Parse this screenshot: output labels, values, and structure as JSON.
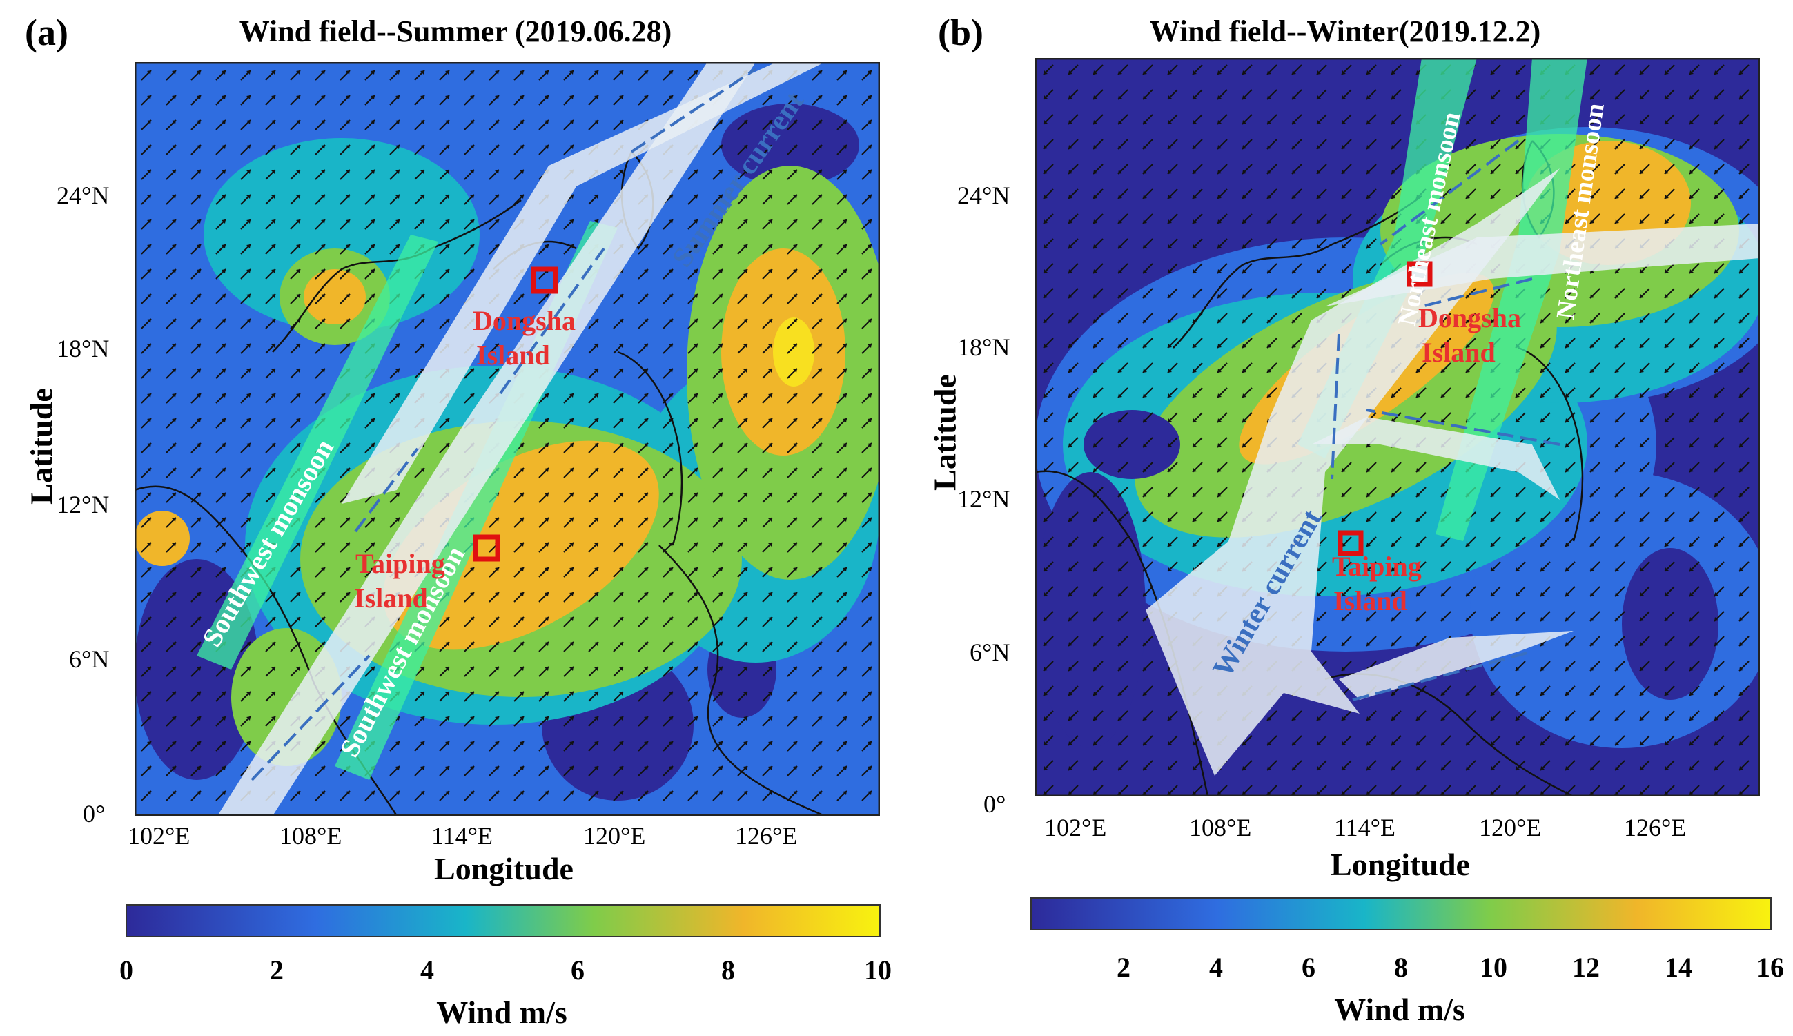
{
  "panels": [
    {
      "label": "(a)",
      "title": "Wind field--Summer (2019.06.28)",
      "xlabel": "Longitude",
      "ylabel": "Latitude",
      "xticks": [
        "102°E",
        "108°E",
        "114°E",
        "120°E",
        "126°E"
      ],
      "yticks": [
        "24°N",
        "18°N",
        "12°N",
        "6°N",
        "0°"
      ],
      "annotations": {
        "monsoon_left": "Southwest monsoon",
        "monsoon_right": "Southwest monsoon",
        "current": "Summer current",
        "dongsha": [
          "Dongsha",
          "Island"
        ],
        "taiping": [
          "Taiping",
          "Island"
        ]
      },
      "colorbar": {
        "title": "Wind m/s",
        "ticks": [
          "0",
          "2",
          "4",
          "6",
          "8",
          "10"
        ],
        "range": [
          0,
          10
        ]
      }
    },
    {
      "label": "(b)",
      "title": "Wind field--Winter(2019.12.2)",
      "xlabel": "Longitude",
      "ylabel": "Latitude",
      "xticks": [
        "102°E",
        "108°E",
        "114°E",
        "120°E",
        "126°E"
      ],
      "yticks": [
        "24°N",
        "18°N",
        "12°N",
        "6°N",
        "0°"
      ],
      "annotations": {
        "monsoon_left": "Northeast monsoon",
        "monsoon_right": "Northeast monsoon",
        "current": "Winter current",
        "dongsha": [
          "Dongsha",
          "Island"
        ],
        "taiping": [
          "Taiping",
          "Island"
        ]
      },
      "colorbar": {
        "title": "Wind m/s",
        "ticks": [
          "2",
          "4",
          "6",
          "8",
          "10",
          "12",
          "14",
          "16"
        ],
        "range": [
          0,
          16
        ]
      }
    }
  ],
  "colors": {
    "low": "#2d2a9a",
    "mid_low": "#2f6de0",
    "mid": "#19b5c8",
    "mid_high": "#7fcc4a",
    "high": "#f0b62a",
    "max": "#f8f20f",
    "marker": "#e01010",
    "annotation_text": "#e83030",
    "current_band": "#e8eef4",
    "monsoon_band": "#3ef0a0",
    "coast": "#111111"
  }
}
